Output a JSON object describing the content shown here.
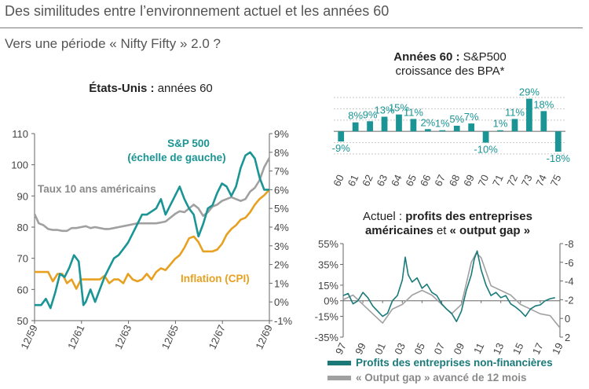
{
  "header": {
    "title": "Des similitudes entre l’environnement actuel et les années 60",
    "subtitle": "Vers une période « Nifty Fifty » 2.0 ?"
  },
  "colors": {
    "teal": "#1a9494",
    "gray": "#a0a0a0",
    "orange": "#e8a020",
    "dark_teal": "#1a7a7a"
  },
  "chart_data": [
    {
      "type": "line",
      "title_bold": "États-Unis :",
      "title_rest": " années 60",
      "left_ticks": [
        "110",
        "100",
        "90",
        "80",
        "70",
        "60",
        "50"
      ],
      "left_ylim": [
        50,
        110
      ],
      "right_ticks": [
        "9%",
        "8%",
        "7%",
        "6%",
        "5%",
        "4%",
        "3%",
        "2%",
        "1%",
        "0%",
        "-1%"
      ],
      "right_ylim": [
        -1,
        9
      ],
      "x_labels": [
        "12/59",
        "12/61",
        "12/63",
        "12/65",
        "12/67",
        "12/69"
      ],
      "x_range": [
        1959.92,
        1969.92
      ],
      "annotations": {
        "sp500_line1": "S&P 500",
        "sp500_line2": "(échelle de gauche)",
        "rates": "Taux 10 ans américains",
        "inflation": "Inflation (CPI)"
      },
      "series": [
        {
          "name": "S&P 500",
          "axis": "left",
          "color": "#1a9494",
          "x": [
            1959.92,
            1960.2,
            1960.4,
            1960.6,
            1960.8,
            1961.0,
            1961.2,
            1961.4,
            1961.6,
            1961.8,
            1962.0,
            1962.1,
            1962.3,
            1962.5,
            1962.7,
            1962.9,
            1963.1,
            1963.3,
            1963.5,
            1963.7,
            1963.9,
            1964.1,
            1964.3,
            1964.5,
            1964.7,
            1964.9,
            1965.1,
            1965.3,
            1965.5,
            1965.7,
            1965.9,
            1966.1,
            1966.3,
            1966.5,
            1966.7,
            1966.9,
            1967.1,
            1967.3,
            1967.5,
            1967.7,
            1967.9,
            1968.1,
            1968.3,
            1968.5,
            1968.7,
            1968.9,
            1969.1,
            1969.3,
            1969.5,
            1969.7,
            1969.92
          ],
          "values": [
            55,
            55,
            57,
            54,
            59,
            65,
            64,
            67,
            71,
            69,
            55,
            56,
            60,
            56,
            60,
            64,
            67,
            70,
            71,
            73,
            75,
            78,
            81,
            84,
            84,
            85,
            86,
            89,
            84,
            87,
            90,
            93,
            89,
            86,
            84,
            77,
            81,
            86,
            87,
            91,
            94,
            93,
            90,
            93,
            99,
            103,
            104,
            102,
            96,
            92,
            92
          ]
        },
        {
          "name": "Taux 10 ans américains",
          "axis": "right",
          "color": "#a0a0a0",
          "x": [
            1959.92,
            1960.1,
            1960.3,
            1960.5,
            1960.7,
            1960.9,
            1961.1,
            1961.3,
            1961.5,
            1961.7,
            1961.9,
            1962.1,
            1962.3,
            1962.5,
            1962.7,
            1962.9,
            1963.1,
            1963.3,
            1963.5,
            1963.7,
            1963.9,
            1964.1,
            1964.3,
            1964.5,
            1964.7,
            1964.9,
            1965.1,
            1965.3,
            1965.5,
            1965.7,
            1965.9,
            1966.1,
            1966.3,
            1966.5,
            1966.7,
            1966.9,
            1967.1,
            1967.3,
            1967.5,
            1967.7,
            1967.9,
            1968.1,
            1968.3,
            1968.5,
            1968.7,
            1968.9,
            1969.1,
            1969.3,
            1969.5,
            1969.7,
            1969.92
          ],
          "values": [
            4.7,
            4.2,
            4.1,
            3.9,
            3.85,
            3.85,
            3.8,
            3.8,
            3.95,
            3.95,
            4.0,
            4.05,
            3.95,
            4.0,
            3.95,
            3.9,
            3.9,
            3.95,
            4.0,
            4.05,
            4.1,
            4.15,
            4.2,
            4.2,
            4.2,
            4.2,
            4.2,
            4.25,
            4.3,
            4.5,
            4.7,
            4.85,
            4.8,
            5.0,
            5.2,
            5.0,
            4.6,
            4.8,
            5.1,
            5.2,
            5.4,
            5.5,
            5.6,
            5.5,
            5.4,
            5.5,
            5.9,
            6.1,
            6.5,
            7.2,
            7.7
          ]
        },
        {
          "name": "Inflation (CPI)",
          "axis": "right",
          "color": "#e8a020",
          "x": [
            1959.92,
            1960.2,
            1960.5,
            1960.7,
            1960.9,
            1961.1,
            1961.3,
            1961.5,
            1961.7,
            1961.9,
            1962.1,
            1962.3,
            1962.5,
            1962.7,
            1962.9,
            1963.1,
            1963.3,
            1963.5,
            1963.7,
            1963.9,
            1964.1,
            1964.3,
            1964.5,
            1964.7,
            1964.9,
            1965.1,
            1965.3,
            1965.5,
            1965.7,
            1965.9,
            1966.1,
            1966.3,
            1966.5,
            1966.7,
            1966.9,
            1967.1,
            1967.3,
            1967.5,
            1967.7,
            1967.9,
            1968.1,
            1968.3,
            1968.5,
            1968.7,
            1968.9,
            1969.1,
            1969.3,
            1969.5,
            1969.7,
            1969.92
          ],
          "values": [
            1.6,
            1.6,
            1.6,
            1.1,
            1.5,
            1.5,
            1.0,
            1.2,
            0.7,
            1.2,
            1.2,
            1.2,
            1.2,
            1.2,
            1.4,
            1.0,
            1.2,
            1.2,
            1.0,
            1.5,
            1.2,
            1.1,
            1.2,
            1.5,
            1.2,
            1.6,
            1.8,
            1.7,
            2.0,
            2.3,
            2.5,
            2.9,
            3.4,
            3.5,
            3.2,
            2.7,
            2.7,
            2.7,
            2.8,
            3.1,
            3.6,
            3.9,
            4.1,
            4.4,
            4.5,
            4.8,
            5.2,
            5.5,
            5.7,
            6.0
          ]
        }
      ]
    },
    {
      "type": "bar",
      "title_bold": "Années 60 :",
      "title_rest": " S&P500",
      "title_line2": "croissance des BPA*",
      "categories": [
        "60",
        "61",
        "62",
        "63",
        "64",
        "65",
        "66",
        "67",
        "68",
        "69",
        "70",
        "71",
        "72",
        "73",
        "74",
        "75"
      ],
      "values": [
        -9,
        8,
        9,
        13,
        15,
        11,
        2,
        1,
        5,
        7,
        -10,
        1,
        11,
        29,
        18,
        -18
      ],
      "value_labels": [
        "-9%",
        "8%",
        "9%",
        "13%",
        "15%",
        "11%",
        "2%",
        "1%",
        "5%",
        "7%",
        "-10%",
        "1%",
        "11%",
        "29%",
        "18%",
        "-18%"
      ],
      "ylim": [
        -25,
        35
      ]
    },
    {
      "type": "line",
      "title_line1_rest": "Actuel : ",
      "title_line1_bold": "profits des entreprises",
      "title_line2_bold_a": "américaines",
      "title_line2_rest": " et ",
      "title_line2_bold_b": "« output gap »",
      "left_ticks": [
        "55%",
        "35%",
        "15%",
        "0%",
        "-15%",
        "-35%"
      ],
      "left_ylim": [
        -35,
        55
      ],
      "right_ticks": [
        "-8",
        "-6",
        "-4",
        "-2",
        "0",
        "2"
      ],
      "right_ylim": [
        -8,
        2
      ],
      "x_labels": [
        "97",
        "99",
        "01",
        "03",
        "05",
        "07",
        "09",
        "11",
        "13",
        "15",
        "17",
        "19"
      ],
      "x_range": [
        1997,
        2019
      ],
      "legend": [
        "Profits des entreprises non-financières",
        "« Output gap » avancé de 12 mois"
      ],
      "series": [
        {
          "name": "Profits des entreprises non-financières",
          "axis": "left",
          "color": "#1a7a7a",
          "x": [
            1997,
            1997.5,
            1998,
            1998.5,
            1999,
            1999.5,
            2000,
            2000.5,
            2001,
            2001.5,
            2002,
            2002.5,
            2003,
            2003.3,
            2003.6,
            2004,
            2004.5,
            2005,
            2005.5,
            2006,
            2006.5,
            2007,
            2007.5,
            2008,
            2008.5,
            2009,
            2009.5,
            2010,
            2010.3,
            2010.6,
            2011,
            2011.5,
            2012,
            2012.5,
            2013,
            2013.5,
            2014,
            2014.5,
            2015,
            2015.5,
            2016,
            2016.5,
            2017,
            2017.5,
            2018,
            2018.5
          ],
          "values": [
            5,
            7,
            -3,
            0,
            8,
            3,
            -5,
            -10,
            -15,
            -12,
            0,
            5,
            20,
            42,
            25,
            18,
            22,
            12,
            16,
            8,
            5,
            -3,
            -8,
            -12,
            -20,
            -10,
            10,
            25,
            40,
            48,
            30,
            15,
            5,
            8,
            3,
            5,
            -3,
            -6,
            -10,
            -15,
            -8,
            -5,
            -4,
            0,
            2,
            3
          ]
        },
        {
          "name": "« Output gap » avancé de 12 mois",
          "axis": "right",
          "color": "#a0a0a0",
          "x": [
            1997,
            1998,
            1999,
            2000,
            2001,
            2002,
            2003,
            2004,
            2005,
            2006,
            2007,
            2008,
            2009,
            2010,
            2010.5,
            2011,
            2012,
            2013,
            2014,
            2015,
            2016,
            2017,
            2018,
            2019
          ],
          "values": [
            -2.0,
            -2.5,
            -1.5,
            -0.5,
            0.5,
            -1.0,
            -1.5,
            -2.5,
            -3.0,
            -2.5,
            -1.5,
            -0.5,
            -1.5,
            -6.0,
            -7.0,
            -6.5,
            -3.5,
            -3.0,
            -2.5,
            -1.5,
            -1.0,
            -0.5,
            -0.3,
            1.0
          ]
        }
      ]
    }
  ]
}
